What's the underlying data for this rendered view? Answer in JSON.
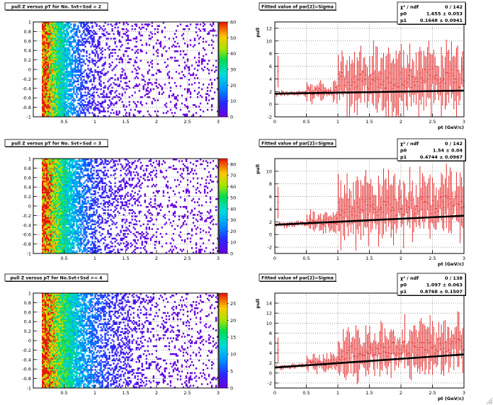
{
  "chart_data": [
    {
      "type": "heatmap",
      "title": "pull Z versus pT for No. Svt+Ssd = 2",
      "xlim": [
        0,
        3
      ],
      "ylim": [
        -1,
        1
      ],
      "x_ticks": [
        "0.5",
        "1",
        "1.5",
        "2",
        "2.5",
        "3"
      ],
      "y_ticks": [
        "-1",
        "-0.8",
        "-0.6",
        "-0.4",
        "-0.2",
        "0",
        "0.2",
        "0.4",
        "0.6",
        "0.8",
        "1"
      ],
      "x_tick_values": [
        0.5,
        1,
        1.5,
        2,
        2.5,
        3
      ],
      "y_tick_values": [
        -1,
        -0.8,
        -0.6,
        -0.4,
        -0.2,
        0,
        0.2,
        0.4,
        0.6,
        0.8,
        1
      ],
      "zlim": [
        0,
        60
      ],
      "z_ticks": [
        "0",
        "10",
        "20",
        "30",
        "40",
        "50",
        "60"
      ],
      "z_tick_values": [
        0,
        10,
        20,
        30,
        40,
        50,
        60
      ],
      "grid": true,
      "colormap": "rainbow"
    },
    {
      "type": "scatter",
      "title": "Fitted value of par[2]=Sigma",
      "xlabel": "pt (GeV/c)",
      "ylabel": "pull",
      "xlim": [
        0,
        3
      ],
      "ylim": [
        -2,
        13
      ],
      "x_ticks": [
        "0",
        "0.5",
        "1",
        "1.5",
        "2",
        "2.5",
        "3"
      ],
      "y_ticks": [
        "-2",
        "0",
        "2",
        "4",
        "6",
        "8",
        "10",
        "12"
      ],
      "x_tick_values": [
        0,
        0.5,
        1,
        1.5,
        2,
        2.5,
        3
      ],
      "y_tick_values": [
        -2,
        0,
        2,
        4,
        6,
        8,
        10,
        12
      ],
      "grid": true,
      "fit": {
        "p0": 1.655,
        "p1": 0.1648
      },
      "stats": {
        "chi2_label": "χ² / ndf",
        "chi2": "0 / 142",
        "p0_label": "p0",
        "p0": "1.655 ± 0.053",
        "p1_label": "p1",
        "p1": "0.1648 ± 0.0941"
      }
    },
    {
      "type": "heatmap",
      "title": "pull Z versus pT for No. Svt+Ssd = 3",
      "xlim": [
        0,
        3
      ],
      "ylim": [
        -1,
        1
      ],
      "x_ticks": [
        "0.5",
        "1",
        "1.5",
        "2",
        "2.5",
        "3"
      ],
      "y_ticks": [
        "-1",
        "-0.8",
        "-0.6",
        "-0.4",
        "-0.2",
        "0",
        "0.2",
        "0.4",
        "0.6",
        "0.8",
        "1"
      ],
      "x_tick_values": [
        0.5,
        1,
        1.5,
        2,
        2.5,
        3
      ],
      "y_tick_values": [
        -1,
        -0.8,
        -0.6,
        -0.4,
        -0.2,
        0,
        0.2,
        0.4,
        0.6,
        0.8,
        1
      ],
      "zlim": [
        0,
        85
      ],
      "z_ticks": [
        "0",
        "10",
        "20",
        "30",
        "40",
        "50",
        "60",
        "70",
        "80"
      ],
      "z_tick_values": [
        0,
        10,
        20,
        30,
        40,
        50,
        60,
        70,
        80
      ],
      "grid": true,
      "colormap": "rainbow"
    },
    {
      "type": "scatter",
      "title": "Fitted value of par[2]=Sigma",
      "xlabel": "pt (GeV/c)",
      "ylabel": "pull",
      "xlim": [
        0,
        3
      ],
      "ylim": [
        -3,
        12
      ],
      "x_ticks": [
        "0",
        "0.5",
        "1",
        "1.5",
        "2",
        "2.5",
        "3"
      ],
      "y_ticks": [
        "-2",
        "0",
        "2",
        "4",
        "6",
        "8",
        "10"
      ],
      "x_tick_values": [
        0,
        0.5,
        1,
        1.5,
        2,
        2.5,
        3
      ],
      "y_tick_values": [
        -2,
        0,
        2,
        4,
        6,
        8,
        10
      ],
      "grid": true,
      "fit": {
        "p0": 1.54,
        "p1": 0.4744
      },
      "stats": {
        "chi2_label": "χ² / ndf",
        "chi2": "0 / 142",
        "p0_label": "p0",
        "p0": "1.54 ± 0.04",
        "p1_label": "p1",
        "p1": "0.4744 ± 0.0967"
      }
    },
    {
      "type": "heatmap",
      "title": "pull Z versus pT for No.Svt+Ssd >= 4",
      "xlim": [
        0,
        3
      ],
      "ylim": [
        -1,
        1
      ],
      "x_ticks": [
        "0.5",
        "1",
        "1.5",
        "2",
        "2.5",
        "3"
      ],
      "y_ticks": [
        "-1",
        "-0.8",
        "-0.6",
        "-0.4",
        "-0.2",
        "0",
        "0.2",
        "0.4",
        "0.6",
        "0.8",
        "1"
      ],
      "x_tick_values": [
        0.5,
        1,
        1.5,
        2,
        2.5,
        3
      ],
      "y_tick_values": [
        -1,
        -0.8,
        -0.6,
        -0.4,
        -0.2,
        0,
        0.2,
        0.4,
        0.6,
        0.8,
        1
      ],
      "zlim": [
        0,
        28
      ],
      "z_ticks": [
        "0",
        "5",
        "10",
        "15",
        "20",
        "25"
      ],
      "z_tick_values": [
        0,
        5,
        10,
        15,
        20,
        25
      ],
      "grid": true,
      "colormap": "rainbow"
    },
    {
      "type": "scatter",
      "title": "Fitted value of par[2]=Sigma",
      "xlabel": "pt (GeV/c)",
      "ylabel": "pull",
      "xlim": [
        0,
        3
      ],
      "ylim": [
        -3,
        16
      ],
      "x_ticks": [
        "0",
        "0.5",
        "1",
        "1.5",
        "2",
        "2.5",
        "3"
      ],
      "y_ticks": [
        "-2",
        "0",
        "2",
        "4",
        "6",
        "8",
        "10",
        "12",
        "14"
      ],
      "x_tick_values": [
        0,
        0.5,
        1,
        1.5,
        2,
        2.5,
        3
      ],
      "y_tick_values": [
        -2,
        0,
        2,
        4,
        6,
        8,
        10,
        12,
        14
      ],
      "grid": true,
      "fit": {
        "p0": 1.097,
        "p1": 0.8768
      },
      "stats": {
        "chi2_label": "χ² / ndf",
        "chi2": "0 / 138",
        "p0_label": "p0",
        "p0": "1.097 ± 0.063",
        "p1_label": "p1",
        "p1": "0.8768 ± 0.1507"
      }
    }
  ]
}
